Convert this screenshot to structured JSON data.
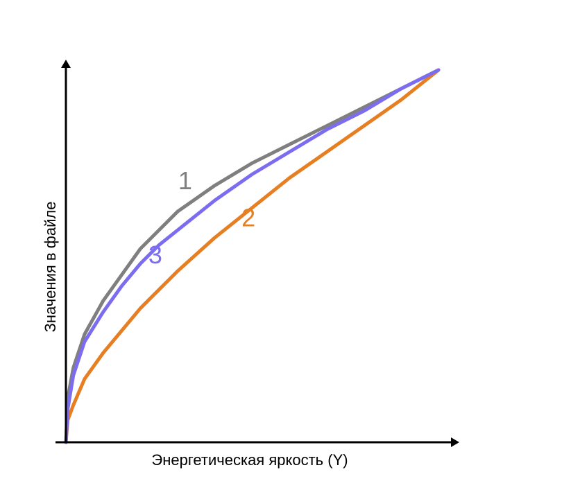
{
  "chart_data": {
    "type": "line",
    "xlabel": "Энергетическая яркость (Y)",
    "ylabel": "Значения в файле",
    "xlim": [
      0,
      1
    ],
    "ylim": [
      0,
      1
    ],
    "grid": false,
    "axes_tick_labels": false,
    "series": [
      {
        "name": "1",
        "color": "#7f7f7f",
        "x": [
          0,
          0.005,
          0.02,
          0.05,
          0.1,
          0.15,
          0.2,
          0.25,
          0.3,
          0.4,
          0.5,
          0.6,
          0.7,
          0.8,
          0.9,
          1.0
        ],
        "y": [
          0,
          0.12,
          0.2,
          0.29,
          0.38,
          0.45,
          0.52,
          0.57,
          0.62,
          0.69,
          0.75,
          0.8,
          0.85,
          0.9,
          0.95,
          1.0
        ]
      },
      {
        "name": "2",
        "color": "#e67e22",
        "x": [
          0,
          0.005,
          0.02,
          0.05,
          0.1,
          0.15,
          0.2,
          0.25,
          0.3,
          0.4,
          0.5,
          0.6,
          0.7,
          0.8,
          0.9,
          1.0
        ],
        "y": [
          0,
          0.06,
          0.1,
          0.17,
          0.24,
          0.3,
          0.36,
          0.41,
          0.46,
          0.55,
          0.63,
          0.71,
          0.78,
          0.85,
          0.92,
          1.0
        ]
      },
      {
        "name": "3",
        "color": "#7b6cf0",
        "x": [
          0,
          0.005,
          0.02,
          0.05,
          0.1,
          0.15,
          0.2,
          0.25,
          0.3,
          0.4,
          0.5,
          0.6,
          0.7,
          0.8,
          0.9,
          1.0
        ],
        "y": [
          0,
          0.09,
          0.18,
          0.27,
          0.35,
          0.42,
          0.48,
          0.53,
          0.57,
          0.65,
          0.72,
          0.78,
          0.84,
          0.89,
          0.95,
          1.0
        ]
      }
    ],
    "series_labels": [
      {
        "text": "1",
        "x": 0.32,
        "y": 0.68,
        "color": "#7f7f7f"
      },
      {
        "text": "2",
        "x": 0.49,
        "y": 0.58,
        "color": "#e67e22"
      },
      {
        "text": "3",
        "x": 0.24,
        "y": 0.48,
        "color": "#7b6cf0"
      }
    ]
  }
}
